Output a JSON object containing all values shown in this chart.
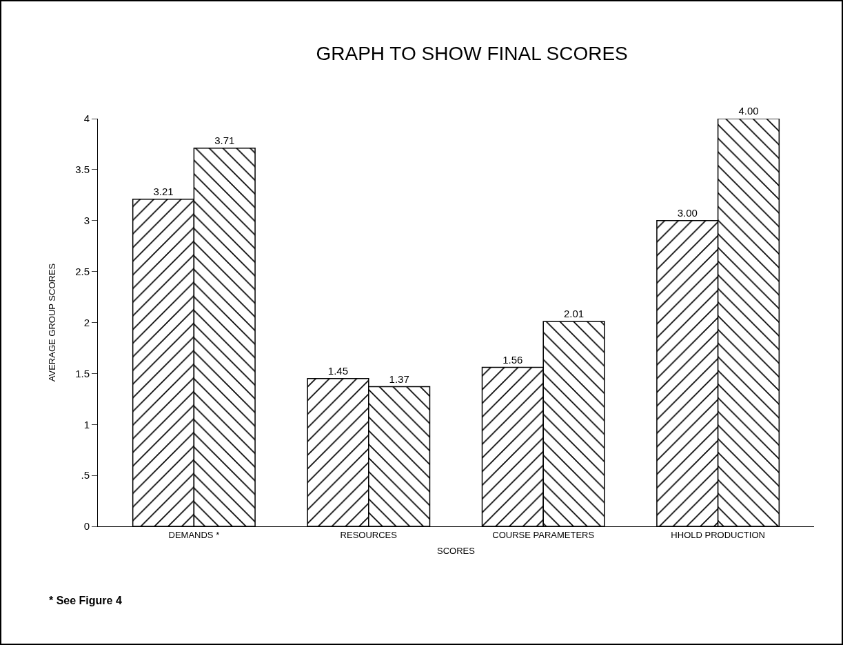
{
  "chart_data": {
    "type": "bar",
    "title": "GRAPH TO SHOW FINAL SCORES",
    "xlabel": "SCORES",
    "ylabel": "AVERAGE GROUP SCORES",
    "categories": [
      "DEMANDS *",
      "RESOURCES",
      "COURSE PARAMETERS",
      "HHOLD PRODUCTION"
    ],
    "series": [
      {
        "color": "#000000",
        "values": [
          3.21,
          1.45,
          1.56,
          3.0
        ],
        "value_labels": [
          "3.21",
          "1.45",
          "1.56",
          "3.00"
        ]
      },
      {
        "color": "#000000",
        "values": [
          3.71,
          1.37,
          2.01,
          4.0
        ],
        "value_labels": [
          "3.71",
          "1.37",
          "2.01",
          "4.00"
        ]
      }
    ],
    "ylim": [
      0,
      4
    ],
    "yticks": [
      0,
      {
        "value": 0.5,
        "label": ".5"
      },
      1,
      1.5,
      2,
      2.5,
      3,
      3.5,
      4
    ],
    "grid": false,
    "legend": false,
    "annotations": [
      "* See Figure 4"
    ]
  }
}
